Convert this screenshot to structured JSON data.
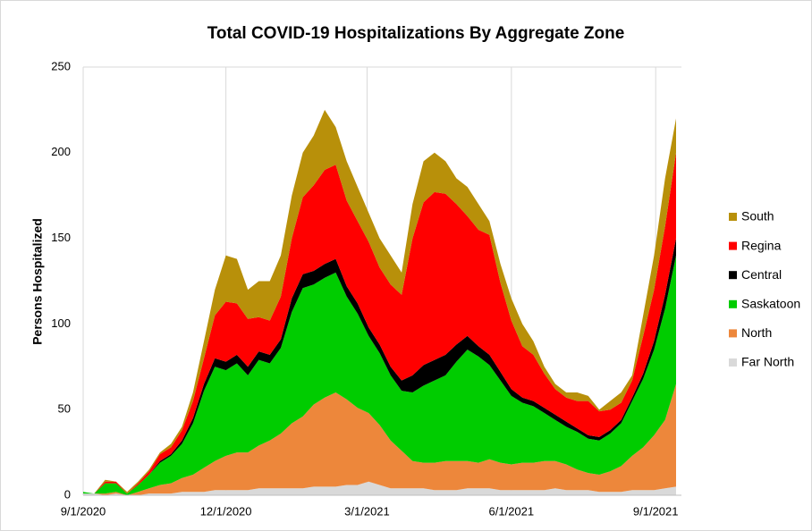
{
  "chart_data": {
    "type": "stacked_area",
    "title": "Total COVID-19 Hospitalizations By Aggregate Zone",
    "y_label": "Persons Hospitalized",
    "x": [
      "9/1/2020",
      "9/8/2020",
      "9/15/2020",
      "9/22/2020",
      "9/29/2020",
      "10/6/2020",
      "10/13/2020",
      "10/20/2020",
      "10/27/2020",
      "11/3/2020",
      "11/10/2020",
      "11/17/2020",
      "11/24/2020",
      "12/1/2020",
      "12/8/2020",
      "12/15/2020",
      "12/22/2020",
      "12/29/2020",
      "1/5/2021",
      "1/12/2021",
      "1/19/2021",
      "1/26/2021",
      "2/2/2021",
      "2/9/2021",
      "2/16/2021",
      "2/23/2021",
      "3/2/2021",
      "3/9/2021",
      "3/16/2021",
      "3/23/2021",
      "3/30/2021",
      "4/6/2021",
      "4/13/2021",
      "4/20/2021",
      "4/27/2021",
      "5/4/2021",
      "5/11/2021",
      "5/18/2021",
      "5/25/2021",
      "6/1/2021",
      "6/8/2021",
      "6/15/2021",
      "6/22/2021",
      "6/29/2021",
      "7/6/2021",
      "7/13/2021",
      "7/20/2021",
      "7/27/2021",
      "8/3/2021",
      "8/10/2021",
      "8/17/2021",
      "8/24/2021",
      "8/31/2021",
      "9/7/2021",
      "9/14/2021"
    ],
    "xlim": [
      "9/1/2020",
      "9/14/2021"
    ],
    "xticks": [
      "9/1/2020",
      "12/1/2020",
      "3/1/2021",
      "6/1/2021",
      "9/1/2021"
    ],
    "ylim": [
      0,
      250
    ],
    "yticks": [
      0,
      50,
      100,
      150,
      200,
      250
    ],
    "grid": true,
    "legend": "right",
    "series": [
      {
        "name": "Far North",
        "color": "#d9d9d9",
        "values": [
          1,
          1,
          0,
          1,
          0,
          0,
          1,
          1,
          1,
          2,
          2,
          2,
          3,
          3,
          3,
          3,
          4,
          4,
          4,
          4,
          4,
          5,
          5,
          5,
          6,
          6,
          8,
          6,
          4,
          4,
          4,
          4,
          3,
          3,
          3,
          4,
          4,
          4,
          3,
          3,
          3,
          3,
          3,
          4,
          3,
          3,
          3,
          2,
          2,
          2,
          3,
          3,
          3,
          4,
          5
        ]
      },
      {
        "name": "North",
        "color": "#ed873b",
        "values": [
          0,
          0,
          1,
          1,
          0,
          2,
          3,
          5,
          6,
          8,
          10,
          14,
          17,
          20,
          22,
          22,
          25,
          28,
          32,
          38,
          42,
          48,
          52,
          55,
          50,
          45,
          40,
          35,
          28,
          22,
          16,
          15,
          16,
          17,
          17,
          16,
          15,
          17,
          16,
          15,
          16,
          16,
          17,
          16,
          15,
          12,
          10,
          10,
          12,
          15,
          20,
          25,
          32,
          40,
          60
        ]
      },
      {
        "name": "Saskatoon",
        "color": "#00cc00",
        "values": [
          1,
          0,
          6,
          5,
          1,
          4,
          8,
          13,
          16,
          20,
          30,
          45,
          55,
          50,
          52,
          45,
          50,
          45,
          50,
          65,
          75,
          70,
          70,
          70,
          60,
          55,
          45,
          42,
          38,
          35,
          40,
          45,
          48,
          50,
          58,
          65,
          62,
          55,
          48,
          40,
          35,
          33,
          28,
          24,
          22,
          22,
          20,
          20,
          22,
          25,
          32,
          40,
          50,
          65,
          75
        ]
      },
      {
        "name": "Central",
        "color": "#000000",
        "values": [
          0,
          0,
          0,
          0,
          0,
          0,
          0,
          1,
          1,
          2,
          3,
          4,
          5,
          5,
          5,
          5,
          5,
          5,
          5,
          8,
          8,
          8,
          8,
          8,
          6,
          6,
          5,
          5,
          5,
          6,
          10,
          12,
          12,
          12,
          10,
          8,
          6,
          6,
          5,
          4,
          3,
          3,
          3,
          3,
          3,
          2,
          2,
          2,
          2,
          2,
          2,
          3,
          5,
          8,
          10
        ]
      },
      {
        "name": "Regina",
        "color": "#ff0000",
        "values": [
          0,
          0,
          1,
          1,
          0,
          1,
          2,
          4,
          4,
          6,
          10,
          15,
          25,
          35,
          30,
          28,
          20,
          20,
          25,
          35,
          45,
          50,
          55,
          55,
          50,
          48,
          50,
          45,
          48,
          50,
          80,
          95,
          98,
          94,
          82,
          70,
          68,
          70,
          52,
          40,
          30,
          27,
          20,
          15,
          14,
          16,
          20,
          15,
          12,
          10,
          10,
          22,
          30,
          40,
          50
        ]
      },
      {
        "name": "South",
        "color": "#b8900a",
        "values": [
          0,
          0,
          1,
          0,
          1,
          1,
          1,
          1,
          2,
          2,
          5,
          10,
          15,
          27,
          26,
          17,
          21,
          23,
          24,
          25,
          26,
          29,
          35,
          22,
          23,
          20,
          17,
          17,
          17,
          13,
          20,
          24,
          23,
          19,
          15,
          17,
          15,
          8,
          11,
          13,
          13,
          8,
          4,
          3,
          3,
          5,
          3,
          1,
          5,
          6,
          3,
          12,
          20,
          28,
          20
        ]
      }
    ]
  }
}
